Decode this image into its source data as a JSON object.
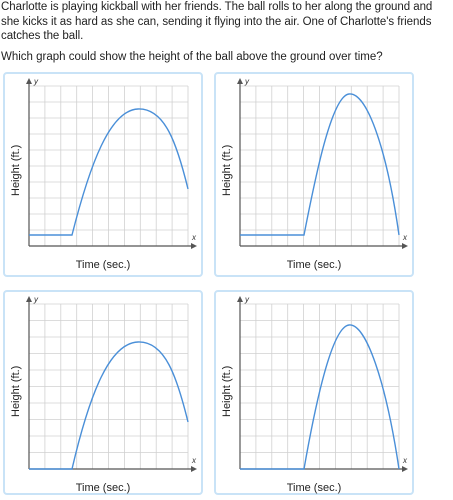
{
  "question": {
    "text": "Charlotte is playing kickball with her friends. The ball rolls to her along the ground and she kicks it as hard as she can, sending it flying into the air. One of Charlotte's friends catches the ball.",
    "prompt": "Which graph could show the height of the ball above the ground over time?"
  },
  "graphs": [
    {
      "xlabel": "Time (sec.)",
      "ylabel": "Height (ft.)",
      "x_axis_letter": "x",
      "y_axis_letter": "y"
    },
    {
      "xlabel": "Time (sec.)",
      "ylabel": "Height (ft.)",
      "x_axis_letter": "x",
      "y_axis_letter": "y"
    },
    {
      "xlabel": "Time (sec.)",
      "ylabel": "Height (ft.)",
      "x_axis_letter": "x",
      "y_axis_letter": "y"
    },
    {
      "xlabel": "Time (sec.)",
      "ylabel": "Height (ft.)",
      "x_axis_letter": "x",
      "y_axis_letter": "y"
    }
  ],
  "colors": {
    "curve": "#4a8fd8",
    "grid": "#d0d0d0",
    "axis": "#555555",
    "card_border": "#c9e3f7"
  }
}
